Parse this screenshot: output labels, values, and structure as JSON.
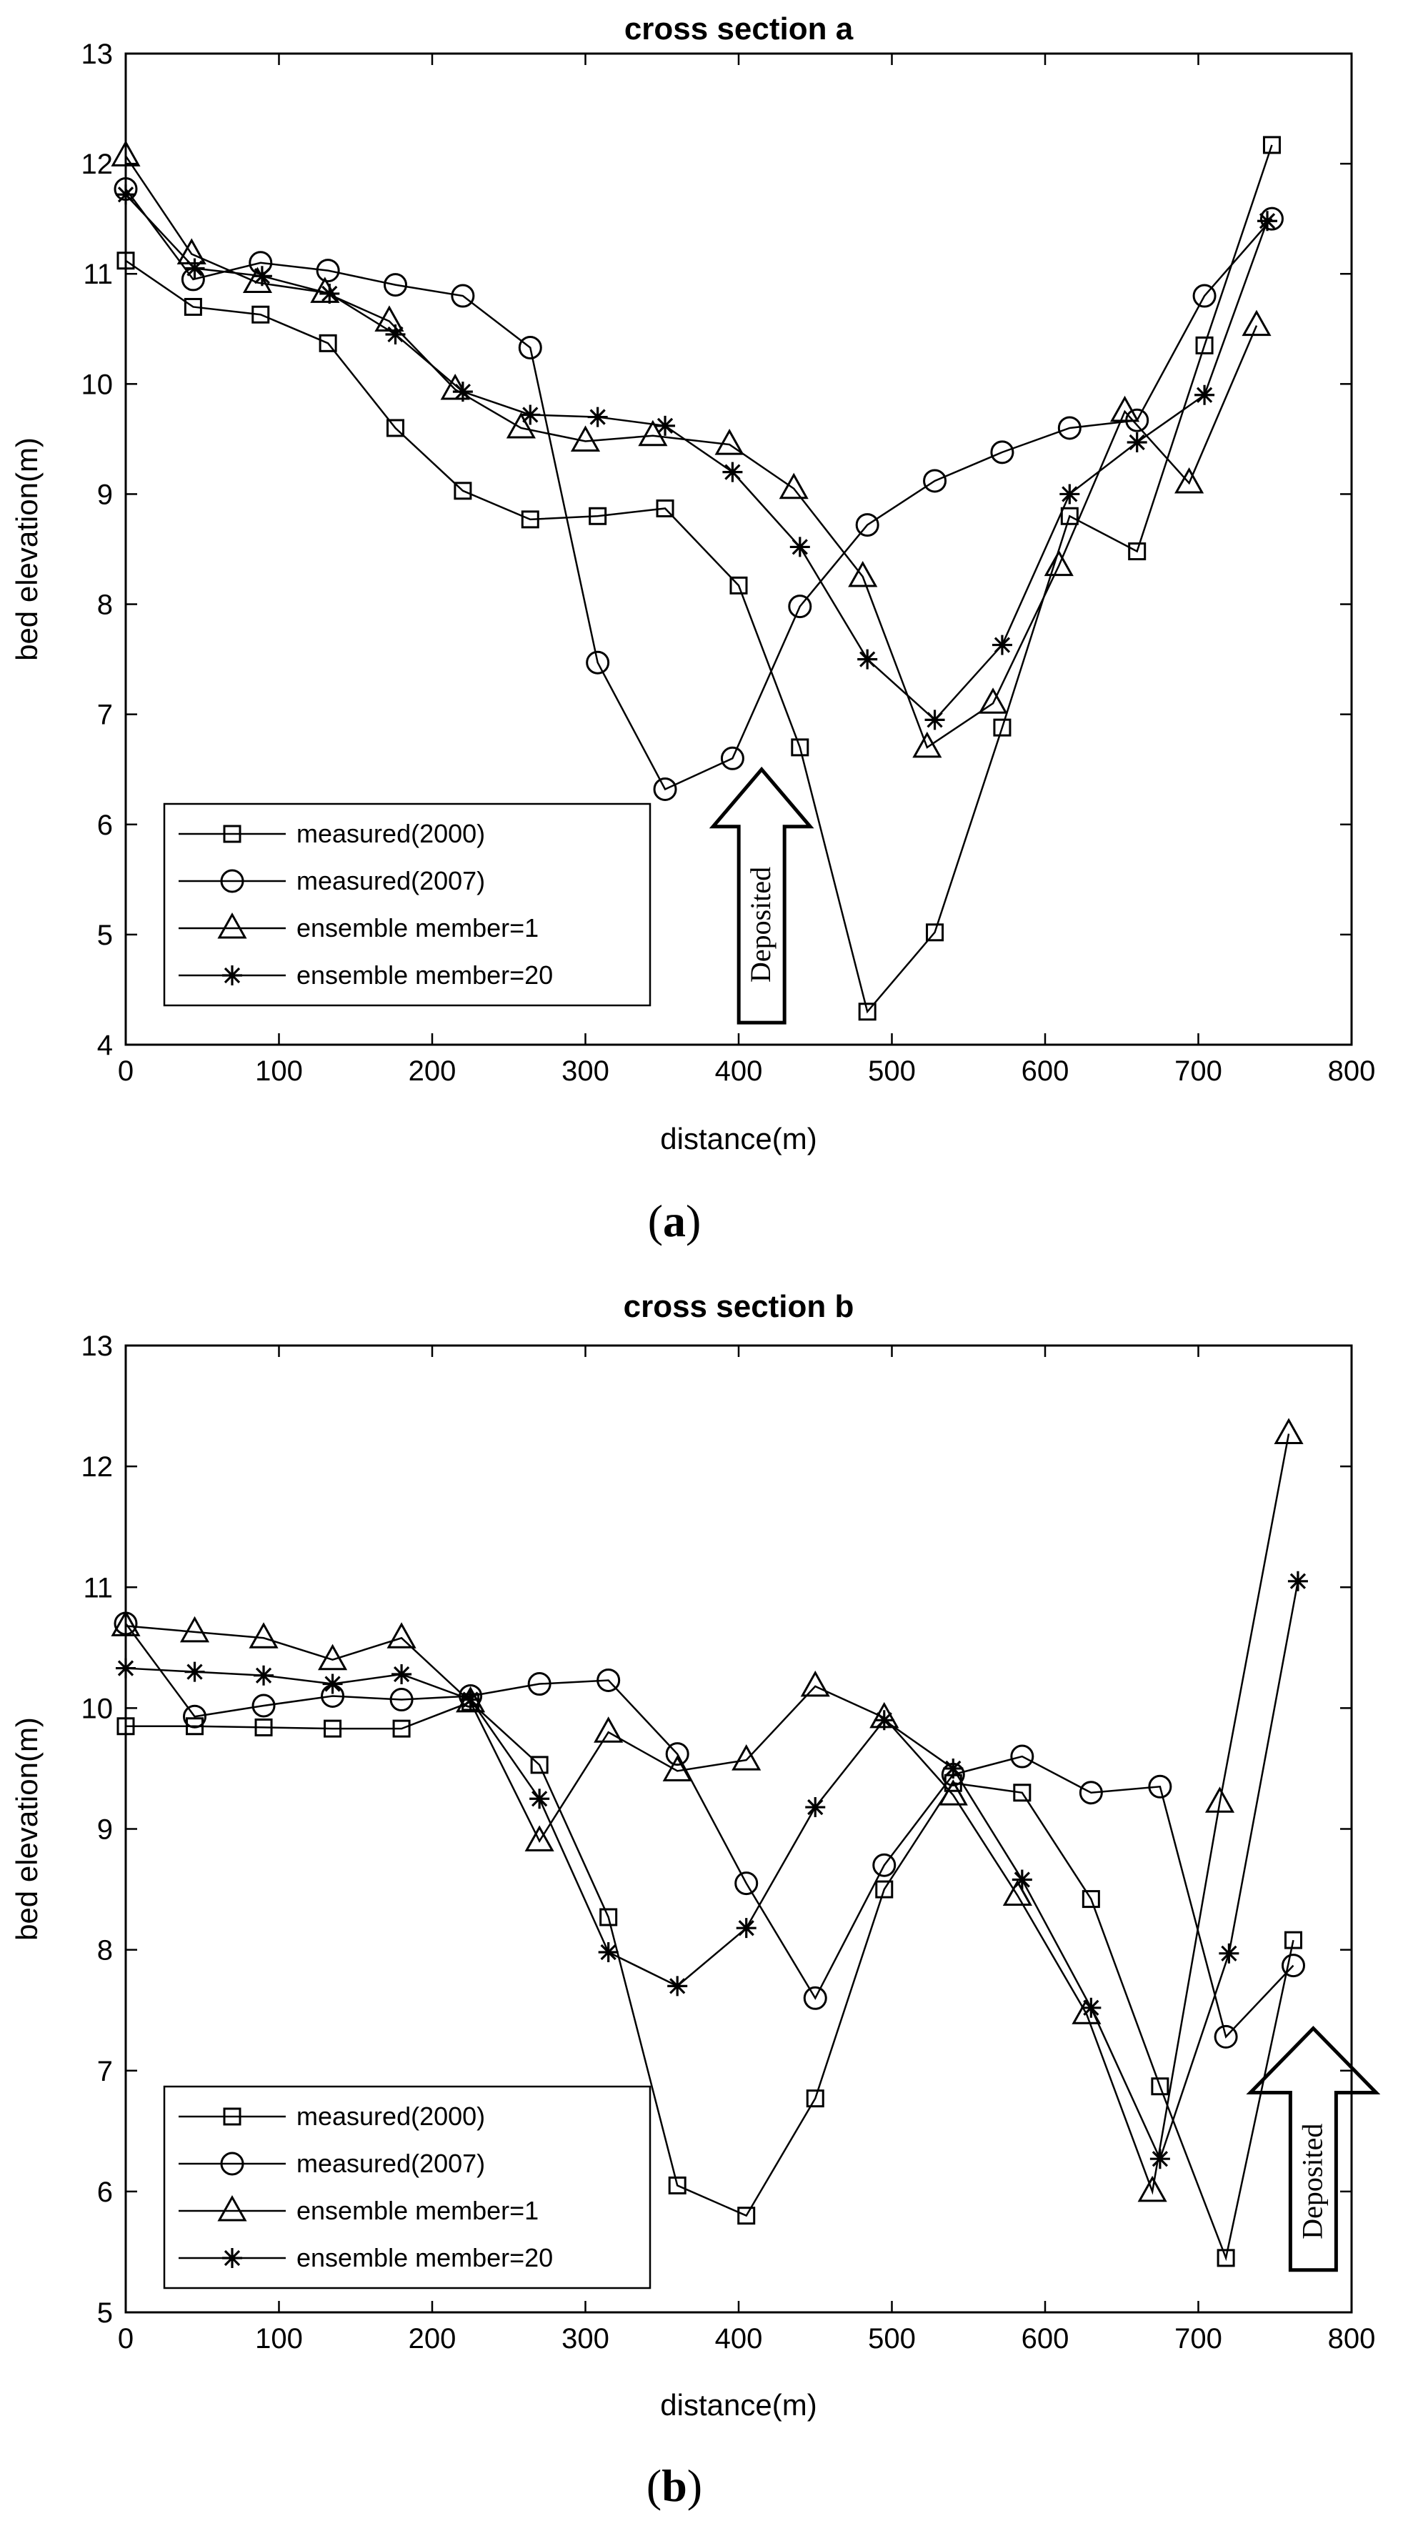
{
  "chart_data": [
    {
      "type": "line",
      "panel": "(a)",
      "caption_open": "(",
      "caption_letter": "a",
      "caption_close": ")",
      "title": "cross section a",
      "xlabel": "distance(m)",
      "ylabel": "bed elevation(m)",
      "xlim": [
        0,
        800
      ],
      "ylim": [
        4,
        13
      ],
      "xticks": [
        "0",
        "100",
        "200",
        "300",
        "400",
        "500",
        "600",
        "700",
        "800"
      ],
      "yticks": [
        "4",
        "5",
        "6",
        "7",
        "8",
        "9",
        "10",
        "11",
        "12",
        "13"
      ],
      "grid": false,
      "legend_position": "bottom-left",
      "annotation": "Deposited",
      "annotation_x": 415,
      "annotation_y": [
        4.2,
        6.5
      ],
      "series": [
        {
          "name": "measured(2000)",
          "marker": "square",
          "x": [
            0,
            44,
            88,
            132,
            176,
            220,
            264,
            308,
            352,
            400,
            440,
            484,
            528,
            572,
            616,
            660,
            704,
            748
          ],
          "y": [
            11.12,
            10.7,
            10.63,
            10.37,
            9.6,
            9.03,
            8.77,
            8.8,
            8.87,
            8.17,
            6.7,
            4.3,
            5.02,
            6.88,
            8.8,
            8.48,
            10.35,
            12.17
          ]
        },
        {
          "name": "measured(2007)",
          "marker": "circle",
          "x": [
            0,
            44,
            88,
            132,
            176,
            220,
            264,
            308,
            352,
            396,
            440,
            484,
            528,
            572,
            616,
            660,
            704,
            748
          ],
          "y": [
            11.77,
            10.95,
            11.1,
            11.03,
            10.9,
            10.8,
            10.33,
            7.47,
            6.32,
            6.6,
            7.98,
            8.72,
            9.12,
            9.38,
            9.6,
            9.67,
            10.8,
            11.5
          ]
        },
        {
          "name": "ensemble member=1",
          "marker": "triangle",
          "x": [
            0,
            43,
            86,
            130,
            172,
            215,
            258,
            300,
            344,
            394,
            436,
            481,
            523,
            566,
            609,
            652,
            694,
            738
          ],
          "y": [
            12.07,
            11.18,
            10.92,
            10.83,
            10.57,
            9.95,
            9.6,
            9.48,
            9.53,
            9.45,
            9.05,
            8.25,
            6.7,
            7.1,
            8.35,
            9.75,
            9.1,
            10.53
          ]
        },
        {
          "name": "ensemble member=20",
          "marker": "asterisk",
          "x": [
            0,
            45,
            89,
            133,
            176,
            220,
            264,
            308,
            352,
            396,
            440,
            484,
            528,
            572,
            616,
            660,
            704,
            745
          ],
          "y": [
            11.72,
            11.05,
            10.98,
            10.82,
            10.45,
            9.93,
            9.72,
            9.7,
            9.62,
            9.2,
            8.52,
            7.5,
            6.95,
            7.63,
            9.0,
            9.47,
            9.9,
            11.48
          ]
        }
      ]
    },
    {
      "type": "line",
      "panel": "(b)",
      "caption_open": "(",
      "caption_letter": "b",
      "caption_close": ")",
      "title": "cross section b",
      "xlabel": "distance(m)",
      "ylabel": "bed elevation(m)",
      "xlim": [
        0,
        800
      ],
      "ylim": [
        5,
        13
      ],
      "xticks": [
        "0",
        "100",
        "200",
        "300",
        "400",
        "500",
        "600",
        "700",
        "800"
      ],
      "yticks": [
        "5",
        "6",
        "7",
        "8",
        "9",
        "10",
        "11",
        "12",
        "13"
      ],
      "grid": false,
      "legend_position": "bottom-left",
      "annotation": "Deposited",
      "annotation_x": 775,
      "annotation_y": [
        5.35,
        7.35
      ],
      "series": [
        {
          "name": "measured(2000)",
          "marker": "square",
          "x": [
            0,
            45,
            90,
            135,
            180,
            225,
            270,
            315,
            360,
            405,
            450,
            495,
            540,
            585,
            630,
            675,
            718,
            762
          ],
          "y": [
            9.85,
            9.85,
            9.84,
            9.83,
            9.83,
            10.05,
            9.53,
            8.27,
            6.05,
            5.8,
            6.77,
            8.5,
            9.38,
            9.3,
            8.42,
            6.87,
            5.45,
            8.08
          ]
        },
        {
          "name": "measured(2007)",
          "marker": "circle",
          "x": [
            0,
            45,
            90,
            135,
            180,
            225,
            270,
            315,
            360,
            405,
            450,
            495,
            540,
            585,
            630,
            675,
            718,
            762
          ],
          "y": [
            10.7,
            9.93,
            10.02,
            10.1,
            10.07,
            10.1,
            10.2,
            10.23,
            9.62,
            8.55,
            7.6,
            8.7,
            9.45,
            9.6,
            9.3,
            9.35,
            7.28,
            7.87
          ]
        },
        {
          "name": "ensemble member=1",
          "marker": "triangle",
          "x": [
            0,
            45,
            90,
            135,
            180,
            225,
            270,
            315,
            360,
            405,
            450,
            495,
            540,
            582,
            627,
            670,
            714,
            759
          ],
          "y": [
            10.68,
            10.63,
            10.58,
            10.4,
            10.58,
            10.05,
            8.9,
            9.8,
            9.48,
            9.57,
            10.18,
            9.92,
            9.28,
            8.45,
            7.47,
            6.0,
            9.22,
            12.27
          ]
        },
        {
          "name": "ensemble member=20",
          "marker": "asterisk",
          "x": [
            0,
            45,
            90,
            135,
            180,
            225,
            270,
            315,
            360,
            405,
            450,
            495,
            540,
            585,
            630,
            675,
            720,
            765
          ],
          "y": [
            10.33,
            10.3,
            10.27,
            10.2,
            10.28,
            10.07,
            9.25,
            7.98,
            7.7,
            8.18,
            9.18,
            9.9,
            9.5,
            8.58,
            7.52,
            6.27,
            7.97,
            11.05
          ]
        }
      ]
    }
  ]
}
